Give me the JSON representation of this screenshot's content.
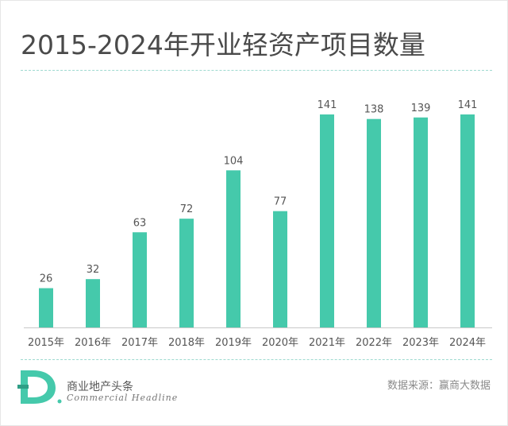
{
  "header": {
    "title": "2015-2024年开业轻资产项目数量"
  },
  "chart_data": {
    "type": "bar",
    "categories": [
      "2015年",
      "2016年",
      "2017年",
      "2018年",
      "2019年",
      "2020年",
      "2021年",
      "2022年",
      "2023年",
      "2024年"
    ],
    "values": [
      26,
      32,
      63,
      72,
      104,
      77,
      141,
      138,
      139,
      141
    ],
    "data_labels": [
      "26",
      "32",
      "63",
      "72",
      "104",
      "77",
      "141",
      "138",
      "139",
      "141"
    ],
    "ylim": [
      0,
      141
    ],
    "grid": false,
    "bar_color": "#45c9ab"
  },
  "footer": {
    "logo_letter": "D",
    "brand_cn": "商业地产头条",
    "brand_en": "Commercial Headline",
    "source": "数据来源：赢商大数据"
  }
}
